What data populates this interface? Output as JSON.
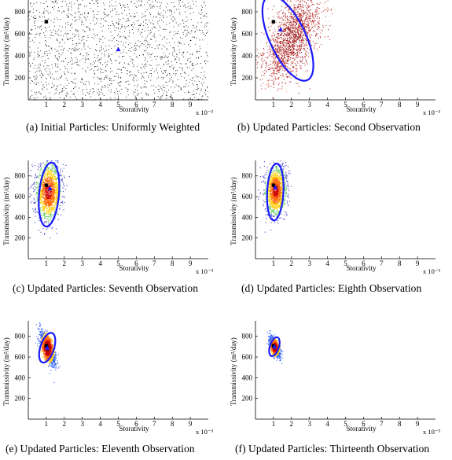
{
  "figure": {
    "panels": [
      {
        "caption": "(a) Initial Particles: Uniformly Weighted",
        "xlabel": "Storativity",
        "ylabel": "Transmissivity (m²/day)",
        "xscale_note": "x 10⁻³",
        "xticks": [
          "1",
          "2",
          "3",
          "4",
          "5",
          "6",
          "7",
          "8",
          "9"
        ],
        "yticks": [
          "200",
          "400",
          "600",
          "800"
        ],
        "chart_data": {
          "type": "scatter",
          "title": "",
          "xlabel": "Storativity",
          "ylabel": "Transmissivity (m²/day)",
          "xlim": [
            0,
            10
          ],
          "ylim": [
            0,
            950
          ],
          "particles": {
            "distribution": "uniform",
            "x_range": [
              0,
              10
            ],
            "y_range": [
              0,
              950
            ],
            "count": 1700,
            "color": "#000000"
          },
          "true_value_marker": {
            "shape": "square",
            "x": 1.0,
            "y": 710,
            "color": "#000000"
          },
          "estimate_marker": {
            "shape": "triangle",
            "x": 5.0,
            "y": 460,
            "color": "#1a1aff"
          },
          "ellipse": null
        }
      },
      {
        "caption": "(b) Updated Particles: Second Observation",
        "xlabel": "Storativity",
        "ylabel": "Transmissivity (m²/day)",
        "xscale_note": "x 10⁻³",
        "xticks": [
          "1",
          "2",
          "3",
          "4",
          "5",
          "6",
          "7",
          "8",
          "9"
        ],
        "yticks": [
          "200",
          "400",
          "600",
          "800"
        ],
        "chart_data": {
          "type": "scatter",
          "title": "",
          "xlabel": "Storativity",
          "ylabel": "Transmissivity (m²/day)",
          "xlim": [
            0,
            10
          ],
          "ylim": [
            0,
            950
          ],
          "particles": {
            "distribution": "gaussian",
            "mean_x": 2.0,
            "mean_y": 560,
            "sd_x": 0.8,
            "sd_y": 200,
            "corr": 0.55,
            "count": 1700,
            "colors": [
              "#8b1a1a",
              "#b22222",
              "#cc4444",
              "#e8c9a0"
            ]
          },
          "true_value_marker": {
            "shape": "square",
            "x": 1.0,
            "y": 710,
            "color": "#000000"
          },
          "estimate_marker": {
            "shape": "triangle",
            "x": 1.4,
            "y": 640,
            "color": "#1a1aff"
          },
          "ellipse": {
            "cx": 1.8,
            "cy": 560,
            "rx": 1.0,
            "ry": 420,
            "rotate": -25,
            "color": "#1a1aff"
          }
        }
      },
      {
        "caption": "(c) Updated Particles: Seventh Observation",
        "xlabel": "Storativity",
        "ylabel": "Transmissivity (m²/day)",
        "xscale_note": "x 10⁻³",
        "xticks": [
          "1",
          "2",
          "3",
          "4",
          "5",
          "6",
          "7",
          "8",
          "9"
        ],
        "yticks": [
          "200",
          "400",
          "600",
          "800"
        ],
        "chart_data": {
          "type": "scatter",
          "title": "",
          "xlabel": "Storativity",
          "ylabel": "Transmissivity (m²/day)",
          "xlim": [
            0,
            10
          ],
          "ylim": [
            0,
            950
          ],
          "particles": {
            "distribution": "gaussian",
            "mean_x": 1.1,
            "mean_y": 650,
            "sd_x": 0.35,
            "sd_y": 140,
            "corr": 0.1,
            "count": 1500,
            "colors": [
              "#cc0000",
              "#ff6600",
              "#ffcc00",
              "#66cc66",
              "#3333cc"
            ]
          },
          "true_value_marker": {
            "shape": "square",
            "x": 1.0,
            "y": 710,
            "color": "#000000"
          },
          "estimate_marker": {
            "shape": "triangle",
            "x": 1.2,
            "y": 680,
            "color": "#1a1aff"
          },
          "ellipse": {
            "cx": 1.15,
            "cy": 620,
            "rx": 0.55,
            "ry": 310,
            "rotate": 5,
            "color": "#1a1aff"
          }
        }
      },
      {
        "caption": "(d) Updated Particles: Eighth Observation",
        "xlabel": "Storativity",
        "ylabel": "Transmissivity (m²/day)",
        "xscale_note": "x 10⁻³",
        "xticks": [
          "1",
          "2",
          "3",
          "4",
          "5",
          "6",
          "7",
          "8",
          "9"
        ],
        "yticks": [
          "200",
          "400",
          "600",
          "800"
        ],
        "chart_data": {
          "type": "scatter",
          "title": "",
          "xlabel": "Storativity",
          "ylabel": "Transmissivity (m²/day)",
          "xlim": [
            0,
            10
          ],
          "ylim": [
            0,
            950
          ],
          "particles": {
            "distribution": "gaussian",
            "mean_x": 1.1,
            "mean_y": 660,
            "sd_x": 0.3,
            "sd_y": 120,
            "corr": 0.1,
            "count": 1500,
            "colors": [
              "#cc0000",
              "#ff6600",
              "#ffcc00",
              "#66cc66",
              "#3333cc"
            ]
          },
          "true_value_marker": {
            "shape": "square",
            "x": 1.0,
            "y": 710,
            "color": "#000000"
          },
          "estimate_marker": {
            "shape": "triangle",
            "x": 1.1,
            "y": 690,
            "color": "#1a1aff"
          },
          "ellipse": {
            "cx": 1.1,
            "cy": 645,
            "rx": 0.45,
            "ry": 275,
            "rotate": 3,
            "color": "#1a1aff"
          }
        }
      },
      {
        "caption": "(e) Updated Particles: Eleventh Observation",
        "xlabel": "Storativity",
        "ylabel": "Transmissivity (m²/day)",
        "xscale_note": "x 10⁻³",
        "xticks": [
          "1",
          "2",
          "3",
          "4",
          "5",
          "6",
          "7",
          "8",
          "9"
        ],
        "yticks": [
          "200",
          "400",
          "600",
          "800"
        ],
        "chart_data": {
          "type": "scatter",
          "title": "",
          "xlabel": "Storativity",
          "ylabel": "Transmissivity (m²/day)",
          "xlim": [
            0,
            10
          ],
          "ylim": [
            0,
            950
          ],
          "particles": {
            "distribution": "gaussian",
            "mean_x": 1.05,
            "mean_y": 690,
            "sd_x": 0.2,
            "sd_y": 75,
            "corr": -0.6,
            "count": 1500,
            "colors": [
              "#8b0000",
              "#cc0000",
              "#ff6600",
              "#ffcc00",
              "#3366ff"
            ]
          },
          "true_value_marker": {
            "shape": "square",
            "x": 1.0,
            "y": 710,
            "color": "#000000"
          },
          "estimate_marker": {
            "shape": "triangle",
            "x": 1.05,
            "y": 690,
            "color": "#1a1aff"
          },
          "ellipse": {
            "cx": 1.05,
            "cy": 690,
            "rx": 0.38,
            "ry": 150,
            "rotate": 18,
            "color": "#1a1aff"
          }
        }
      },
      {
        "caption": "(f) Updated Particles: Thirteenth Observation",
        "xlabel": "Storativity",
        "ylabel": "Transmissivity (m²/day)",
        "xscale_note": "x 10⁻³",
        "xticks": [
          "1",
          "2",
          "3",
          "4",
          "5",
          "6",
          "7",
          "8",
          "9"
        ],
        "yticks": [
          "200",
          "400",
          "600",
          "800"
        ],
        "chart_data": {
          "type": "scatter",
          "title": "",
          "xlabel": "Storativity",
          "ylabel": "Transmissivity (m²/day)",
          "xlim": [
            0,
            10
          ],
          "ylim": [
            0,
            950
          ],
          "particles": {
            "distribution": "gaussian",
            "mean_x": 1.05,
            "mean_y": 700,
            "sd_x": 0.14,
            "sd_y": 45,
            "corr": -0.6,
            "count": 1300,
            "colors": [
              "#8b0000",
              "#cc0000",
              "#ff6600",
              "#ffcc00",
              "#3366ff"
            ]
          },
          "true_value_marker": {
            "shape": "square",
            "x": 1.0,
            "y": 710,
            "color": "#000000"
          },
          "estimate_marker": {
            "shape": "triangle",
            "x": 1.05,
            "y": 700,
            "color": "#1a1aff"
          },
          "ellipse": {
            "cx": 1.05,
            "cy": 700,
            "rx": 0.25,
            "ry": 95,
            "rotate": 18,
            "color": "#1a1aff"
          }
        }
      }
    ]
  }
}
